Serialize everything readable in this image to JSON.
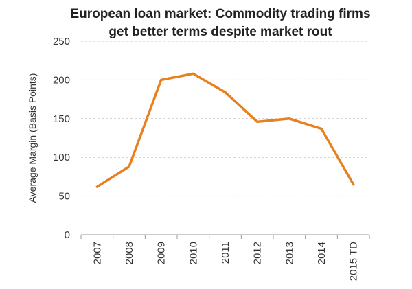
{
  "chart_data": {
    "type": "line",
    "title": "European loan market: Commodity trading firms get better terms despite market rout",
    "title_lines": [
      "European loan market: Commodity trading firms",
      "get better terms despite market rout"
    ],
    "xlabel": "",
    "ylabel": "Average Margin (Basis Points)",
    "ylim": [
      0,
      250
    ],
    "yticks": [
      0,
      50,
      100,
      150,
      200,
      250
    ],
    "grid": true,
    "legend": "none",
    "categories": [
      "2007",
      "2008",
      "2009",
      "2010",
      "2011",
      "2012",
      "2013",
      "2014",
      "2015 TD"
    ],
    "series": [
      {
        "values": [
          62,
          88,
          200,
          208,
          184,
          146,
          150,
          137,
          65
        ],
        "color": "#E8801E"
      }
    ],
    "colors": {
      "line": "#E8801E",
      "grid": "#c8c8c8",
      "axis": "#333333",
      "text": "#222222"
    }
  }
}
